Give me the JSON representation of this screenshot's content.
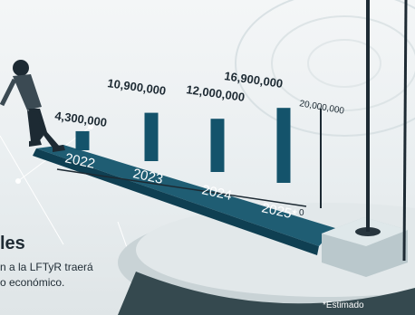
{
  "chart_data": {
    "type": "bar",
    "categories": [
      "2022",
      "2023",
      "2024",
      "2025*"
    ],
    "values": [
      4300000,
      10900000,
      12000000,
      16900000
    ],
    "value_labels": [
      "4,300,000",
      "10,900,000",
      "12,000,000",
      "16,900,000"
    ],
    "axis_ticks": [
      "0",
      "20,000,000"
    ],
    "ylim": [
      0,
      20000000
    ],
    "bar_color": "#14536b",
    "platform_color": "#1f5d73"
  },
  "text": {
    "heading": "les",
    "subline1": "n a la LFTyR traerá",
    "subline2": "o económico.",
    "note": "*Estimado"
  }
}
